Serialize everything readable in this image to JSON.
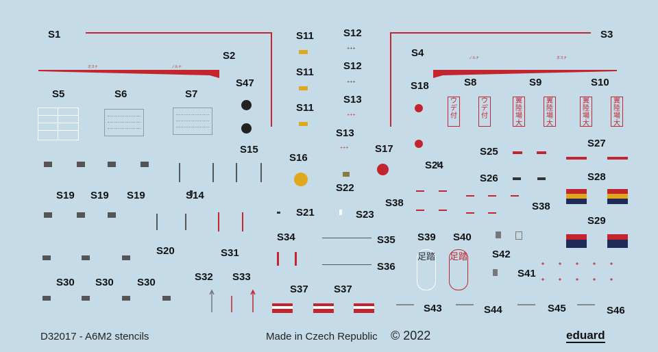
{
  "labels": {
    "s1": "S1",
    "s2": "S2",
    "s3": "S3",
    "s4": "S4",
    "s5": "S5",
    "s6": "S6",
    "s7": "S7",
    "s8": "S8",
    "s9": "S9",
    "s10": "S10",
    "s11a": "S11",
    "s11b": "S11",
    "s11c": "S11",
    "s12a": "S12",
    "s12b": "S12",
    "s13a": "S13",
    "s13b": "S13",
    "s14": "S14",
    "s15": "S15",
    "s16": "S16",
    "s17": "S17",
    "s18": "S18",
    "s19a": "S19",
    "s19b": "S19",
    "s19c": "S19",
    "s20": "S20",
    "s21": "S21",
    "s22": "S22",
    "s23": "S23",
    "s24": "S24",
    "s25": "S25",
    "s26": "S26",
    "s27": "S27",
    "s28": "S28",
    "s29": "S29",
    "s30a": "S30",
    "s30b": "S30",
    "s30c": "S30",
    "s31": "S31",
    "s32": "S32",
    "s33": "S33",
    "s34": "S34",
    "s35": "S35",
    "s36": "S36",
    "s37a": "S37",
    "s37b": "S37",
    "s38a": "S38",
    "s38b": "S38",
    "s39": "S39",
    "s40": "S40",
    "s41": "S41",
    "s42": "S42",
    "s43": "S43",
    "s44": "S44",
    "s45": "S45",
    "s46": "S46",
    "s47": "S47"
  },
  "footer": {
    "product": "D32017 -  A6M2 stencils",
    "made_in": "Made in Czech Republic",
    "copyright": "© 2022",
    "brand": "eduard"
  },
  "jp_text": {
    "s2_a": "オスナ",
    "s2_b": "ノルナ",
    "s3_a": "ノルナ",
    "s3_b": "オスナ",
    "s8": "ウデ付",
    "s9": "翼陸場大",
    "s10": "翼陸場大",
    "s39": "足踏",
    "s40": "足踏"
  },
  "colors": {
    "background": "#c6dbe8",
    "red": "#c2252d",
    "dark": "#333333",
    "yellow": "#e0a81e",
    "navy": "#1f2a56"
  }
}
